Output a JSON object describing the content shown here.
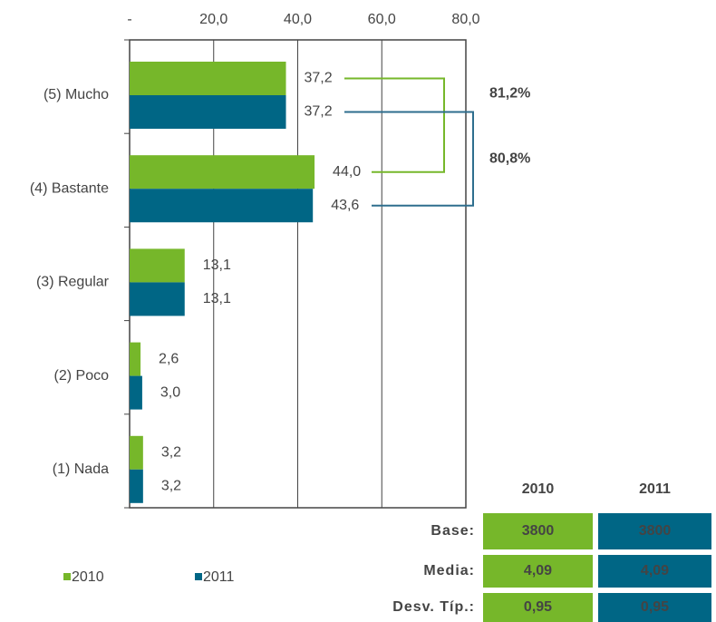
{
  "chart_data": {
    "type": "hbar",
    "categories": [
      "(5) Mucho",
      "(4) Bastante",
      "(3) Regular",
      "(2) Poco",
      "(1) Nada"
    ],
    "series": [
      {
        "name": "2010",
        "color": "#76b72a",
        "values": [
          37.2,
          44.0,
          13.1,
          2.6,
          3.2
        ],
        "value_labels": [
          "37,2",
          "44,0",
          "13,1",
          "2,6",
          "3,2"
        ]
      },
      {
        "name": "2011",
        "color": "#006685",
        "values": [
          37.2,
          43.6,
          13.1,
          3.0,
          3.2
        ],
        "value_labels": [
          "37,2",
          "43,6",
          "13,1",
          "3,0",
          "3,2"
        ]
      }
    ],
    "xlim": [
      0,
      80
    ],
    "xticks": [
      {
        "value": 0,
        "label": "-"
      },
      {
        "value": 20,
        "label": "20,0"
      },
      {
        "value": 40,
        "label": "40,0"
      },
      {
        "value": 60,
        "label": "60,0"
      },
      {
        "value": 80,
        "label": "80,0"
      }
    ],
    "grid": true,
    "legend": "bottom",
    "annotations": [
      {
        "text": "81,2%",
        "color": "#76b72a"
      },
      {
        "text": "80,8%",
        "color": "#2e6e8e"
      }
    ],
    "table": {
      "columns": [
        "2010",
        "2011"
      ],
      "rows": [
        {
          "label": "Base:",
          "values": [
            "3800",
            "3800"
          ]
        },
        {
          "label": "Media:",
          "values": [
            "4,09",
            "4,09"
          ]
        },
        {
          "label": "Desv. Típ.:",
          "values": [
            "0,95",
            "0,95"
          ]
        }
      ]
    }
  }
}
